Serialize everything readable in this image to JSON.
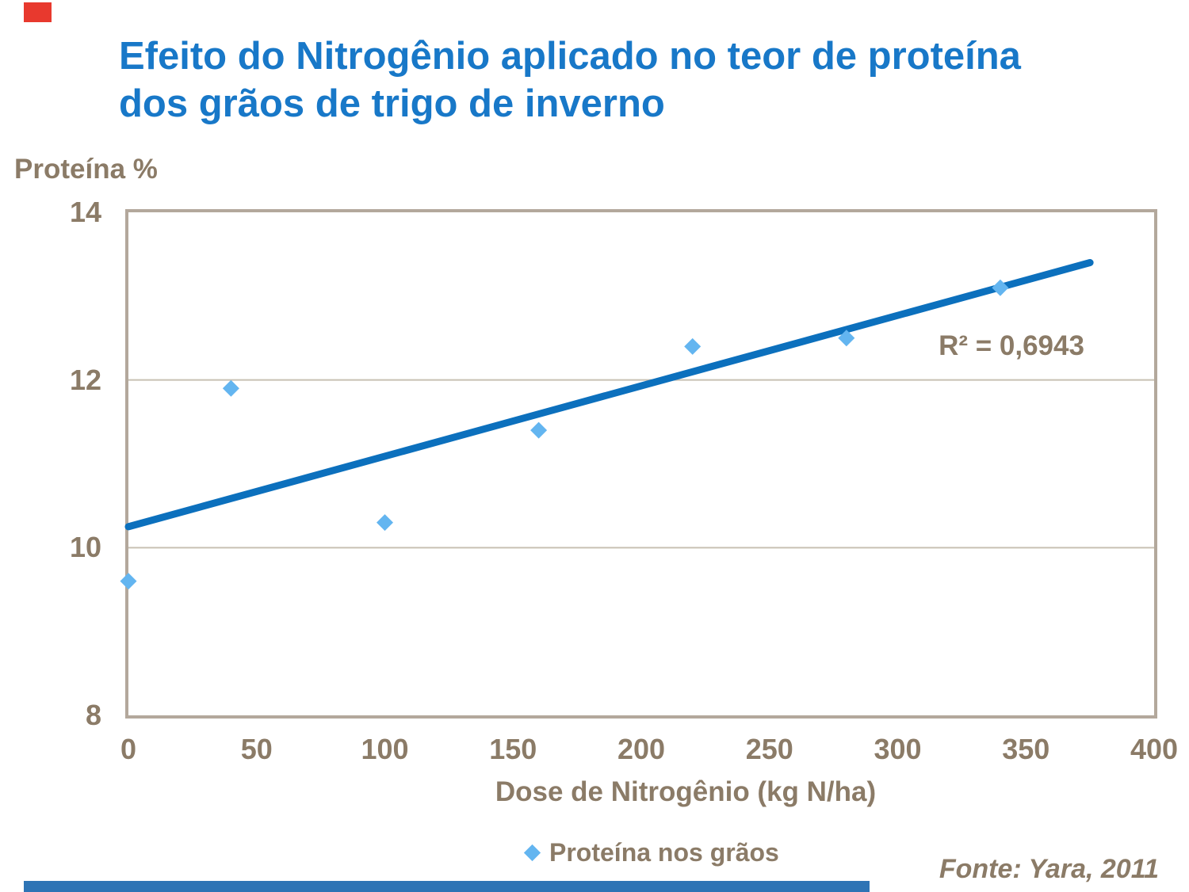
{
  "colors": {
    "title": "#1878C8",
    "text": "#8B7B67",
    "accent_red": "#E8392E",
    "accent_blue": "#2E74B5"
  },
  "header": {
    "title": "Efeito do Nitrogênio aplicado no teor de proteína\ndos grãos de trigo de inverno"
  },
  "chart_data": {
    "type": "scatter",
    "title": "Efeito do Nitrogênio aplicado no teor de proteína dos grãos de trigo de inverno",
    "xlabel": "Dose de Nitrogênio (kg N/ha)",
    "ylabel": "Proteína %",
    "xlim": [
      0,
      400
    ],
    "ylim": [
      8,
      14
    ],
    "x_ticks": [
      "0",
      "50",
      "100",
      "150",
      "200",
      "250",
      "300",
      "350",
      "400"
    ],
    "y_ticks": [
      "14",
      "12",
      "10",
      "8"
    ],
    "gridlines_y": [
      12,
      10
    ],
    "grid": "horizontal-only",
    "legend_position": "bottom",
    "series": [
      {
        "name": "Proteína nos grãos",
        "marker": "diamond",
        "points": [
          [
            0,
            9.6
          ],
          [
            40,
            11.9
          ],
          [
            100,
            10.3
          ],
          [
            160,
            11.4
          ],
          [
            220,
            12.4
          ],
          [
            280,
            12.5
          ],
          [
            340,
            13.1
          ]
        ]
      }
    ],
    "trendline": {
      "x1": 0,
      "y1": 10.25,
      "x2": 375,
      "y2": 13.4,
      "r2_label": "R² = 0,6943"
    },
    "colors": {
      "point": "#63B5F0",
      "trendline": "#0C70BD",
      "frame": "#B3A89C",
      "gridline": "#C8C0B3"
    }
  },
  "footer": {
    "source": "Fonte: Yara, 2011"
  }
}
